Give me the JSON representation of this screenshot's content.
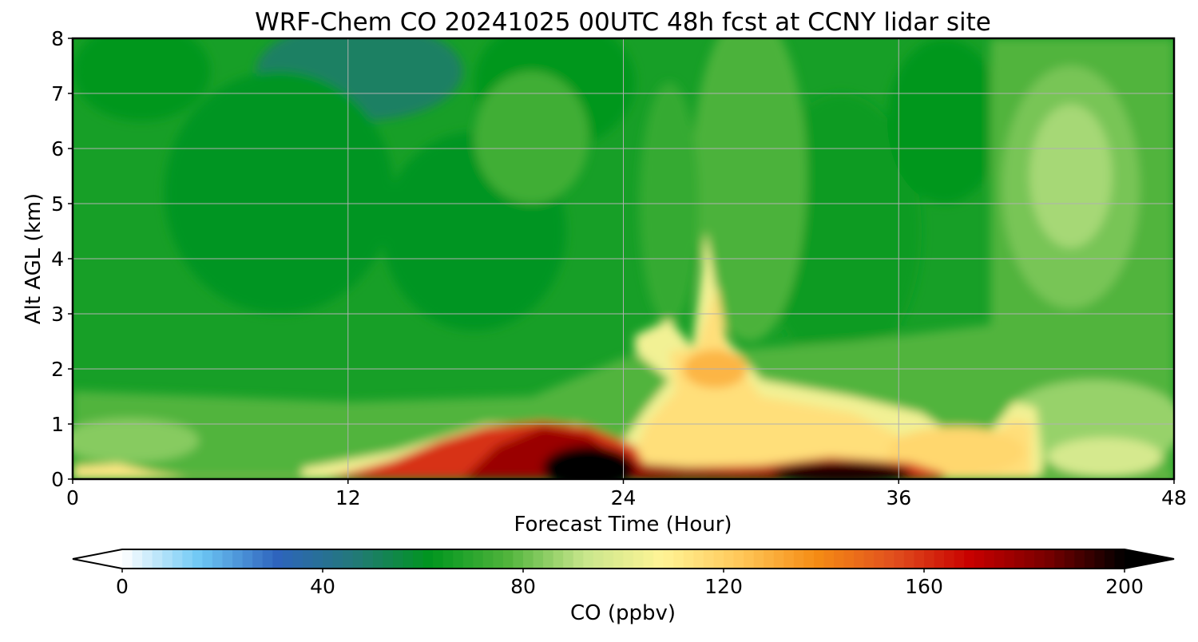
{
  "chart_data": {
    "type": "heatmap",
    "title": "WRF-Chem CO  20241025 00UTC 48h fcst at CCNY lidar site",
    "xlabel": "Forecast Time (Hour)",
    "ylabel": "Alt AGL (km)",
    "xlim": [
      0,
      48
    ],
    "ylim": [
      0,
      8
    ],
    "xticks": [
      "0",
      "12",
      "24",
      "36",
      "48"
    ],
    "yticks": [
      "0",
      "1",
      "2",
      "3",
      "4",
      "5",
      "6",
      "7",
      "8"
    ],
    "grid": true,
    "colorbar": {
      "label": "CO  (ppbv)",
      "range": [
        0,
        200
      ],
      "ticks": [
        "0",
        "40",
        "80",
        "120",
        "160",
        "200"
      ],
      "extend": "both",
      "colors": [
        "#ffffff",
        "#6ec8f5",
        "#2e64be",
        "#23787a",
        "#00961e",
        "#50b43c",
        "#c8e68c",
        "#fff496",
        "#ffc85a",
        "#f58c14",
        "#e1501e",
        "#c80000",
        "#780000",
        "#000000"
      ]
    },
    "features": [
      {
        "name": "low-CO region",
        "x_range": [
          6,
          16
        ],
        "y_range": [
          2,
          8
        ],
        "value": 60
      },
      {
        "name": "surface max",
        "x": 22,
        "y": 0.3,
        "value": 200
      },
      {
        "name": "plume",
        "x": 27.5,
        "y": 2,
        "value": 120
      },
      {
        "name": "plume peak",
        "x": 28,
        "y": 4.5,
        "value": 95
      },
      {
        "name": "upper enhancement",
        "x": 43.5,
        "y": 5.5,
        "value": 88
      }
    ]
  }
}
